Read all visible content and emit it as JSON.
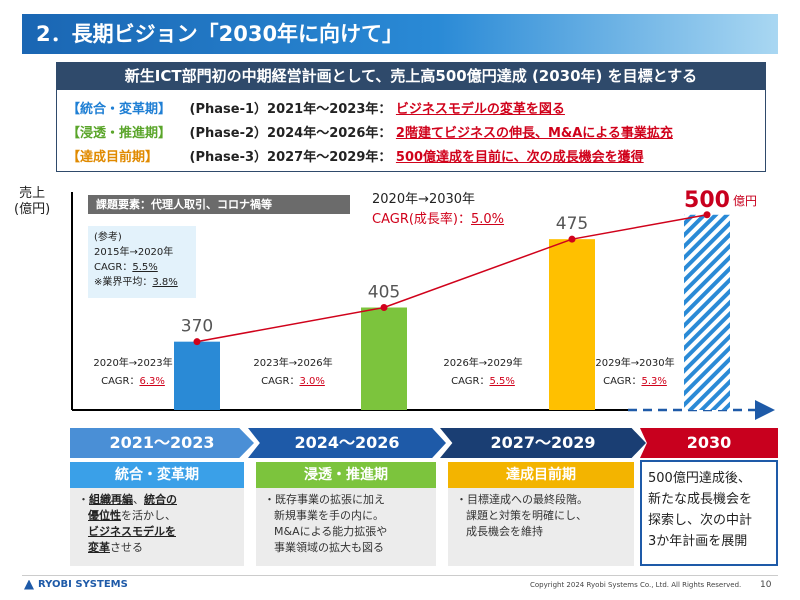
{
  "header": {
    "title": "2．長期ビジョン「2030年に向けて」",
    "subtitle": "新生ICT部門初の中期経営計画として、売上高500億円達成 (2030年) を目標とする"
  },
  "phases": [
    {
      "name": "【統合・変革期】",
      "range": "(Phase-1）2021年〜2023年：",
      "desc": "ビジネスモデルの変革を図る",
      "color": "#1f7fd4"
    },
    {
      "name": "【浸透・推進期】",
      "range": "(Phase-2）2024年〜2026年：",
      "desc": "2階建てビジネスの伸長、M&Aによる事業拡充",
      "color": "#5aa52a"
    },
    {
      "name": "【達成目前期】",
      "range": "(Phase-3）2027年〜2029年：",
      "desc": "500億達成を目前に、次の成長機会を獲得",
      "color": "#e08a00"
    }
  ],
  "chart": {
    "yunit_line1": "売上",
    "yunit_line2": "(億円)",
    "issue_label": "課題要素：代理人取引、コロナ禍等",
    "ref": {
      "title": "(参考)",
      "period": "2015年→2020年",
      "cagr_label": "CAGR：",
      "cagr_value": "5.5%",
      "industry_label": "※業界平均：",
      "industry_value": "3.8%"
    },
    "overall": {
      "period": "2020年→2030年",
      "cagr_label": "CAGR(成長率)：",
      "cagr_value": "5.0%"
    },
    "segments": [
      {
        "period": "2020年→2023年",
        "label": "CAGR：",
        "value": "6.3%"
      },
      {
        "period": "2023年→2026年",
        "label": "CAGR：",
        "value": "3.0%"
      },
      {
        "period": "2026年→2029年",
        "label": "CAGR：",
        "value": "5.5%"
      },
      {
        "period": "2029年→2030年",
        "label": "CAGR：",
        "value": "5.3%"
      }
    ],
    "target_unit": "億円"
  },
  "chart_data": {
    "type": "bar",
    "categories": [
      "2023",
      "2026",
      "2029",
      "2030"
    ],
    "values": [
      370,
      405,
      475,
      500
    ],
    "value_labels": [
      "370",
      "405",
      "475",
      "500"
    ],
    "bar_colors": [
      "#2a8ad6",
      "#7cc43d",
      "#ffc000",
      "#2a8ad6"
    ],
    "target_bar_hatched": true,
    "line_color": "#d0021b",
    "ylim": [
      300,
      510
    ]
  },
  "timeline": [
    {
      "years": "2021〜2023",
      "stage": "統合・変革期",
      "stage_color": "#3aa0e8"
    },
    {
      "years": "2024〜2026",
      "stage": "浸透・推進期",
      "stage_color": "#7cc43d"
    },
    {
      "years": "2027〜2029",
      "stage": "達成目前期",
      "stage_color": "#f3b400"
    },
    {
      "years": "2030"
    }
  ],
  "stage_bodies": {
    "s1_bullet": "・",
    "s1_b1": "組織再編",
    "s1_t1": "、",
    "s1_b2": "統合の",
    "s1_b3": "優位性",
    "s1_t2": "を活かし、",
    "s1_b4": "ビジネスモデルを",
    "s1_b5": "変革",
    "s1_t3": "させる",
    "s2_l1": "・既存事業の拡張に加え",
    "s2_l2": "新規事業を手の内に。",
    "s2_l3": "M&Aによる能力拡張や",
    "s2_l4": "事業領域の拡大も図る",
    "s3_l1": "・目標達成への最終段階。",
    "s3_l2": "課題と対策を明確にし、",
    "s3_l3": "成長機会を維持"
  },
  "goal": {
    "l1": "500億円達成後、",
    "l2": "新たな成長機会を",
    "l3": "探索し、次の中計",
    "l4": "3か年計画を展開"
  },
  "footer": {
    "logo": "RYOBI SYSTEMS",
    "copyright": "Copyright 2024 Ryobi Systems Co., Ltd. All Rights Reserved.",
    "page": "10"
  }
}
